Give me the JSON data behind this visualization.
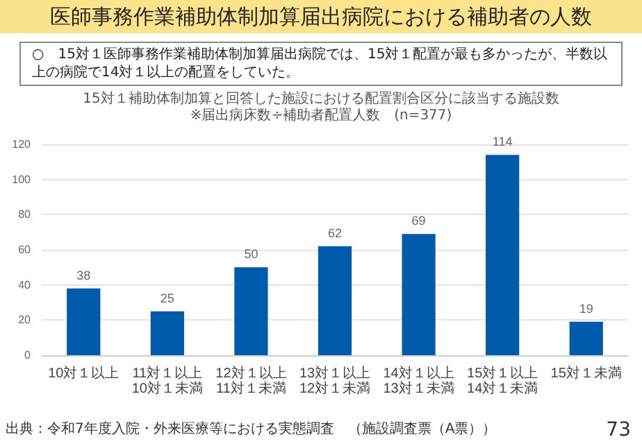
{
  "chart_data": {
    "type": "bar",
    "title": "医師事務作業補助体制加算届出病院における補助者の人数",
    "subtitle": "○　15対１医師事務作業補助体制加算届出病院では、15対１配置が最も多かったが、半数以上の病院で14対１以上の配置をしていた。",
    "annotations": [
      "15対１補助体制加算と回答した施設における配置割合区分に該当する施設数",
      "※届出病床数÷補助者配置人数　(n=377)",
      "出典：令和7年度入院・外来医療等における実態調査　（施設調査票（A票））",
      "73"
    ],
    "categories": [
      "10対１以上",
      "11対１以上10対１未満",
      "12対１以上11対１未満",
      "13対１以上12対１未満",
      "14対１以上13対１未満",
      "15対１以上14対１未満",
      "15対１未満"
    ],
    "values": [
      38,
      25,
      50,
      62,
      69,
      114,
      19
    ],
    "color": "#005bac",
    "ylim": [
      0,
      120
    ],
    "yticks": [
      0,
      20,
      40,
      60,
      80,
      100,
      120
    ],
    "grid": "y",
    "data_labels": true
  }
}
